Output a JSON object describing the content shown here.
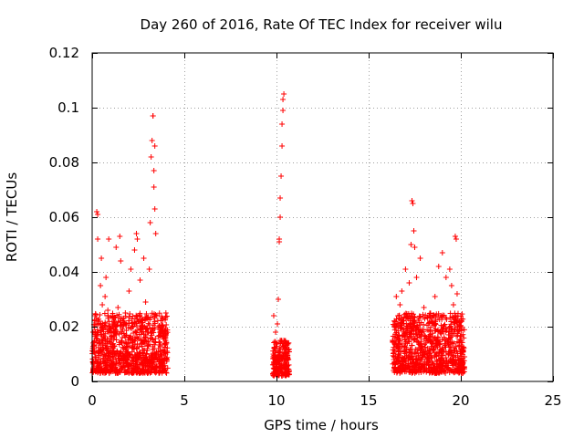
{
  "chart_data": {
    "type": "scatter",
    "title": "Day 260 of 2016, Rate Of TEC Index for receiver wilu",
    "xlabel": "GPS time / hours",
    "ylabel": "ROTI / TECUs",
    "xlim": [
      0,
      25
    ],
    "ylim": [
      0,
      0.12
    ],
    "xticks": [
      0,
      5,
      10,
      15,
      20,
      25
    ],
    "xtick_labels": [
      "0",
      "5",
      "10",
      "15",
      "20",
      "25"
    ],
    "yticks": [
      0,
      0.02,
      0.04,
      0.06,
      0.08,
      0.1,
      0.12
    ],
    "ytick_labels": [
      "0",
      "0.02",
      "0.04",
      "0.06",
      "0.08",
      "0.1",
      "0.12"
    ],
    "grid": true,
    "marker": "+",
    "color": "#ff0000",
    "series": [
      {
        "name": "ROTI",
        "points": [
          [
            0.05,
            0.018
          ],
          [
            0.1,
            0.012
          ],
          [
            0.15,
            0.024
          ],
          [
            0.2,
            0.009
          ],
          [
            0.25,
            0.062
          ],
          [
            0.3,
            0.061
          ],
          [
            0.3,
            0.052
          ],
          [
            0.35,
            0.015
          ],
          [
            0.4,
            0.022
          ],
          [
            0.45,
            0.035
          ],
          [
            0.5,
            0.045
          ],
          [
            0.55,
            0.028
          ],
          [
            0.6,
            0.014
          ],
          [
            0.65,
            0.008
          ],
          [
            0.7,
            0.031
          ],
          [
            0.75,
            0.038
          ],
          [
            0.8,
            0.019
          ],
          [
            0.85,
            0.026
          ],
          [
            0.9,
            0.052
          ],
          [
            0.95,
            0.011
          ],
          [
            1.0,
            0.016
          ],
          [
            1.1,
            0.021
          ],
          [
            1.2,
            0.013
          ],
          [
            1.3,
            0.049
          ],
          [
            1.4,
            0.027
          ],
          [
            1.5,
            0.053
          ],
          [
            1.55,
            0.044
          ],
          [
            1.6,
            0.018
          ],
          [
            1.7,
            0.012
          ],
          [
            1.8,
            0.025
          ],
          [
            1.9,
            0.009
          ],
          [
            2.0,
            0.033
          ],
          [
            2.1,
            0.041
          ],
          [
            2.2,
            0.015
          ],
          [
            2.3,
            0.048
          ],
          [
            2.4,
            0.054
          ],
          [
            2.45,
            0.052
          ],
          [
            2.5,
            0.022
          ],
          [
            2.6,
            0.037
          ],
          [
            2.7,
            0.014
          ],
          [
            2.8,
            0.045
          ],
          [
            2.9,
            0.029
          ],
          [
            3.0,
            0.018
          ],
          [
            3.1,
            0.041
          ],
          [
            3.15,
            0.058
          ],
          [
            3.2,
            0.082
          ],
          [
            3.25,
            0.088
          ],
          [
            3.3,
            0.097
          ],
          [
            3.3,
            0.097
          ],
          [
            3.35,
            0.077
          ],
          [
            3.35,
            0.071
          ],
          [
            3.4,
            0.086
          ],
          [
            3.4,
            0.063
          ],
          [
            3.45,
            0.054
          ],
          [
            3.5,
            0.024
          ],
          [
            3.6,
            0.012
          ],
          [
            3.7,
            0.019
          ],
          [
            3.8,
            0.008
          ],
          [
            3.9,
            0.016
          ],
          [
            4.0,
            0.025
          ],
          [
            4.05,
            0.011
          ],
          [
            9.85,
            0.024
          ],
          [
            9.9,
            0.012
          ],
          [
            9.95,
            0.018
          ],
          [
            10.0,
            0.006
          ],
          [
            10.05,
            0.021
          ],
          [
            10.1,
            0.03
          ],
          [
            10.15,
            0.051
          ],
          [
            10.15,
            0.052
          ],
          [
            10.2,
            0.06
          ],
          [
            10.2,
            0.067
          ],
          [
            10.25,
            0.075
          ],
          [
            10.3,
            0.086
          ],
          [
            10.3,
            0.094
          ],
          [
            10.35,
            0.099
          ],
          [
            10.35,
            0.103
          ],
          [
            10.4,
            0.105
          ],
          [
            10.4,
            0.013
          ],
          [
            10.5,
            0.009
          ],
          [
            10.6,
            0.014
          ],
          [
            10.65,
            0.008
          ],
          [
            16.3,
            0.015
          ],
          [
            16.4,
            0.022
          ],
          [
            16.5,
            0.031
          ],
          [
            16.6,
            0.012
          ],
          [
            16.7,
            0.028
          ],
          [
            16.8,
            0.033
          ],
          [
            16.9,
            0.018
          ],
          [
            17.0,
            0.041
          ],
          [
            17.1,
            0.024
          ],
          [
            17.2,
            0.036
          ],
          [
            17.3,
            0.05
          ],
          [
            17.35,
            0.066
          ],
          [
            17.4,
            0.065
          ],
          [
            17.45,
            0.055
          ],
          [
            17.5,
            0.049
          ],
          [
            17.6,
            0.038
          ],
          [
            17.7,
            0.019
          ],
          [
            17.8,
            0.045
          ],
          [
            17.9,
            0.012
          ],
          [
            18.0,
            0.027
          ],
          [
            18.2,
            0.015
          ],
          [
            18.4,
            0.022
          ],
          [
            18.6,
            0.031
          ],
          [
            18.8,
            0.042
          ],
          [
            19.0,
            0.047
          ],
          [
            19.2,
            0.038
          ],
          [
            19.4,
            0.041
          ],
          [
            19.5,
            0.035
          ],
          [
            19.6,
            0.028
          ],
          [
            19.7,
            0.053
          ],
          [
            19.75,
            0.052
          ],
          [
            19.8,
            0.032
          ],
          [
            19.9,
            0.021
          ],
          [
            20.0,
            0.015
          ],
          [
            20.1,
            0.011
          ],
          [
            20.2,
            0.009
          ]
        ],
        "dense_bands": [
          {
            "x_range": [
              0.0,
              4.1
            ],
            "y_range": [
              0.003,
              0.025
            ]
          },
          {
            "x_range": [
              9.8,
              10.7
            ],
            "y_range": [
              0.002,
              0.015
            ]
          },
          {
            "x_range": [
              16.3,
              20.2
            ],
            "y_range": [
              0.003,
              0.025
            ]
          }
        ]
      }
    ]
  }
}
